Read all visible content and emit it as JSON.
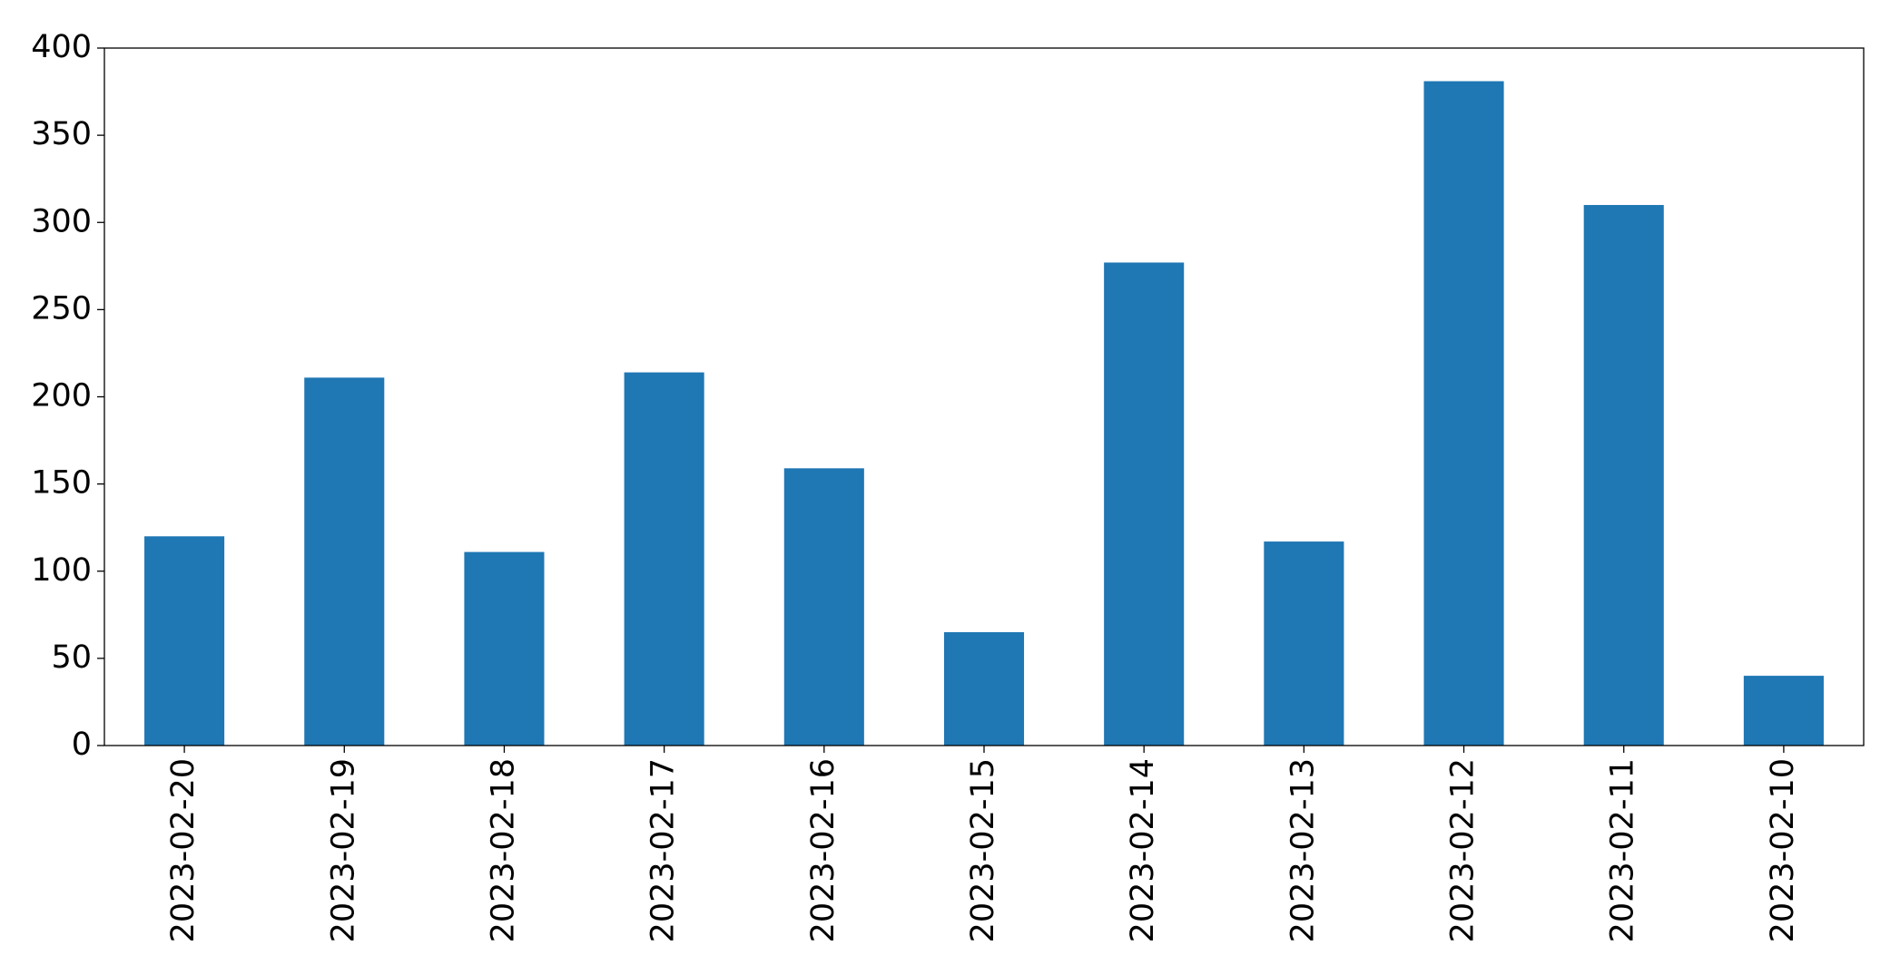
{
  "chart_data": {
    "type": "bar",
    "categories": [
      "2023-02-20",
      "2023-02-19",
      "2023-02-18",
      "2023-02-17",
      "2023-02-16",
      "2023-02-15",
      "2023-02-14",
      "2023-02-13",
      "2023-02-12",
      "2023-02-11",
      "2023-02-10"
    ],
    "values": [
      120,
      211,
      111,
      214,
      159,
      65,
      277,
      117,
      381,
      310,
      40
    ],
    "color": "#1f77b4",
    "ylim": [
      0,
      400
    ],
    "yticks": [
      0,
      50,
      100,
      150,
      200,
      250,
      300,
      350,
      400
    ],
    "grid": false
  }
}
